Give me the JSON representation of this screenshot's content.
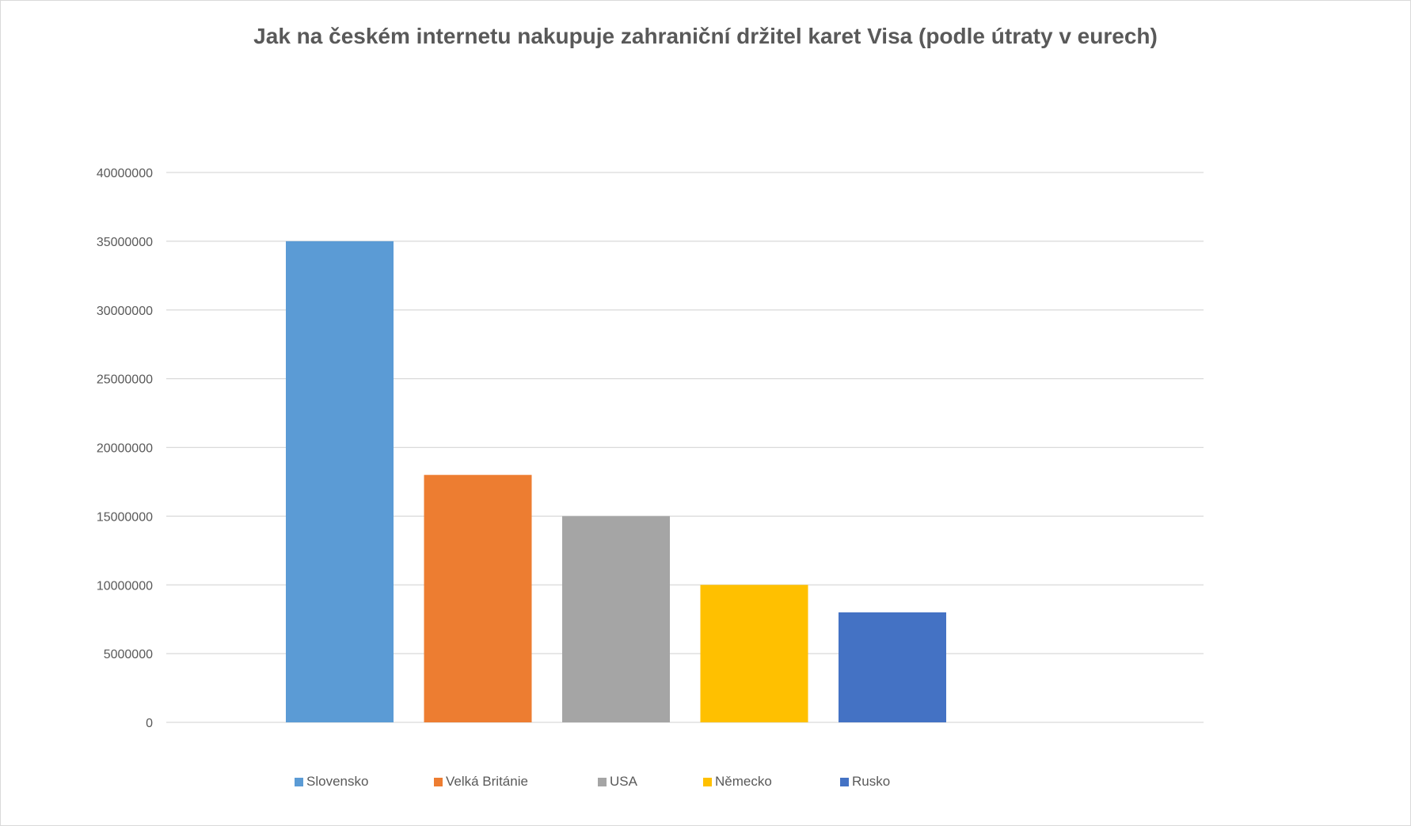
{
  "chart_data": {
    "type": "bar",
    "title": "Jak na českém internetu nakupuje zahraniční držitel karet Visa (podle útraty v eurech)",
    "categories": [
      "Slovensko",
      "Velká Británie",
      "USA",
      "Německo",
      "Rusko"
    ],
    "values": [
      35000000,
      18000000,
      15000000,
      10000000,
      8000000
    ],
    "colors": [
      "#5B9BD5",
      "#ED7D31",
      "#A5A5A5",
      "#FFC000",
      "#4472C4"
    ],
    "ylim": [
      0,
      40000000
    ],
    "yticks": [
      "0",
      "5000000",
      "10000000",
      "15000000",
      "20000000",
      "25000000",
      "30000000",
      "35000000",
      "40000000"
    ],
    "xlabel": "",
    "ylabel": "",
    "grid": true,
    "legend": "bottom"
  }
}
